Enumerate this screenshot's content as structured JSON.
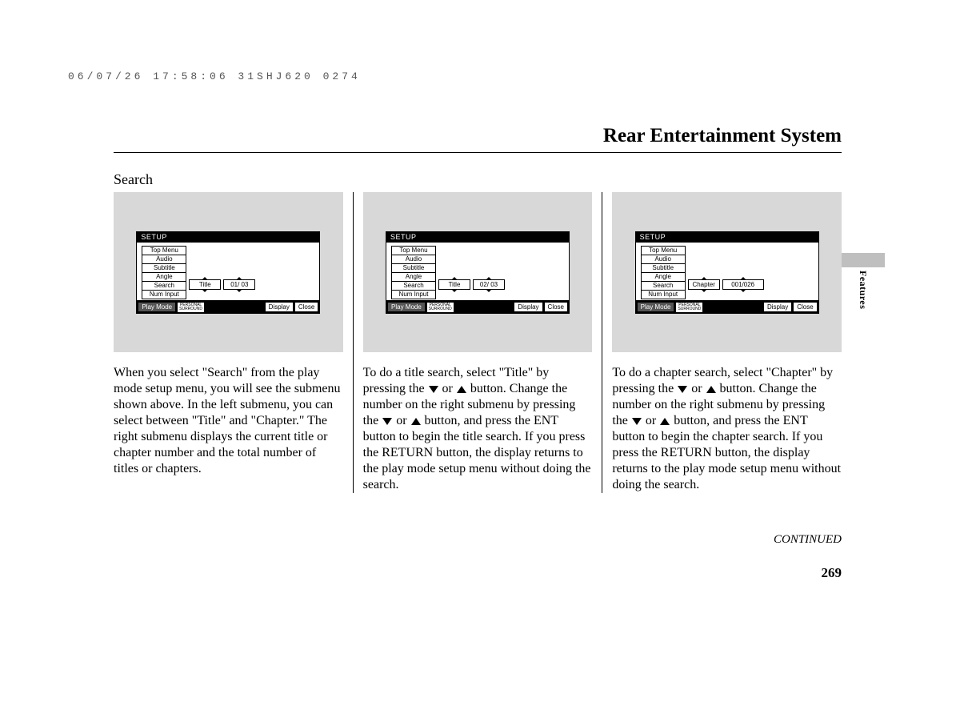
{
  "header": {
    "timestamp": "06/07/26 17:58:06 31SHJ620 0274",
    "page_title": "Rear Entertainment System",
    "section_label": "Search"
  },
  "setup_ui": {
    "title": "SETUP",
    "menu_items": [
      "Top Menu",
      "Audio",
      "Subtitle",
      "Angle",
      "Search",
      "Num Input"
    ],
    "footer": {
      "play_mode": "Play Mode",
      "surround_top": "PERSONAL",
      "surround_bottom": "SURROUND",
      "display": "Display",
      "close": "Close"
    }
  },
  "columns": [
    {
      "sub1_label": "Title",
      "sub2_label": "01/ 03",
      "sub2_wide": false,
      "text_parts": [
        "When you select \"Search\" from the play mode setup menu, you will see the submenu shown above. In the left submenu, you can select between \"Title\" and \"Chapter.\" The right submenu displays the current title or chapter number and the total number of titles or chapters."
      ]
    },
    {
      "sub1_label": "Title",
      "sub2_label": "02/ 03",
      "sub2_wide": false,
      "text_parts": [
        "To do a title search, select \"Title\" by pressing the ",
        {
          "icon": "down"
        },
        " or ",
        {
          "icon": "up"
        },
        " button. Change the number on the right submenu by pressing the ",
        {
          "icon": "down"
        },
        " or ",
        {
          "icon": "up"
        },
        " button, and press the ENT button to begin the title search. If you press the RETURN button, the display returns to the play mode setup menu without doing the search."
      ]
    },
    {
      "sub1_label": "Chapter",
      "sub2_label": "001/026",
      "sub2_wide": true,
      "text_parts": [
        "To do a chapter search, select \"Chapter\" by pressing the ",
        {
          "icon": "down"
        },
        " or ",
        {
          "icon": "up"
        },
        " button. Change the number on the right submenu by pressing the ",
        {
          "icon": "down"
        },
        " or ",
        {
          "icon": "up"
        },
        " button, and press the ENT button to begin the chapter search. If you press the RETURN button, the display returns to the play mode setup menu without doing the search."
      ]
    }
  ],
  "footer": {
    "continued": "CONTINUED",
    "page_number": "269",
    "side_tab_label": "Features"
  },
  "colors": {
    "screenshot_bg": "#d8d8d8",
    "side_tab_bg": "#bfbfbf",
    "text": "#000000",
    "background": "#ffffff"
  }
}
